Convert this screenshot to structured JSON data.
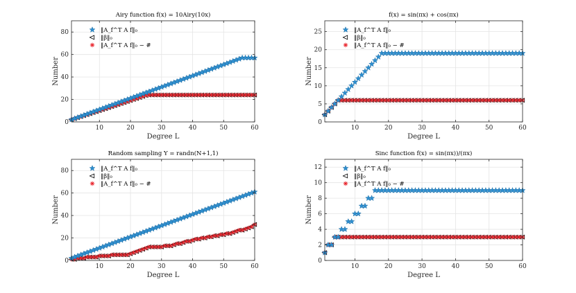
{
  "colors": {
    "star": "#2e8fd0",
    "triangle": "#000000",
    "asterisk": "#e8222a",
    "grid": "#e4e4e4",
    "axis": "#262626"
  },
  "chart_data": [
    {
      "type": "scatter",
      "title": "Airy function f(x) = 10Airy(10x)",
      "xlabel": "Degree L",
      "ylabel": "Number",
      "xlim": [
        1,
        60
      ],
      "ylim": [
        0,
        90
      ],
      "xticks": [
        "10",
        "20",
        "30",
        "40",
        "50",
        "60"
      ],
      "yticks": [
        "0",
        "20",
        "40",
        "60",
        "80"
      ],
      "legend": [
        "‖A_f^T A f‖₀",
        "‖β‖₀",
        "‖A_f^T A f‖₀ − #"
      ],
      "series": [
        {
          "name": "‖A_f^T A f‖₀",
          "marker": "star",
          "description": "linear growth from 2 at L=1 to 57 at L=56, then flat at 57",
          "values": [
            2,
            3,
            4,
            5,
            6,
            7,
            8,
            9,
            10,
            11,
            12,
            13,
            14,
            15,
            16,
            17,
            18,
            19,
            20,
            21,
            22,
            23,
            24,
            25,
            26,
            27,
            28,
            29,
            30,
            31,
            32,
            33,
            34,
            35,
            36,
            37,
            38,
            39,
            40,
            41,
            42,
            43,
            44,
            45,
            46,
            47,
            48,
            49,
            50,
            51,
            52,
            53,
            54,
            55,
            56,
            57,
            57,
            57,
            57,
            57
          ]
        },
        {
          "name": "‖β‖₀",
          "marker": "triangle",
          "description": "grows ~0.9 per degree to 24 near L=26, then flat at 24",
          "values": [
            2,
            2.9,
            3.8,
            4.7,
            5.6,
            6.5,
            7.4,
            8.3,
            9.2,
            10.1,
            11,
            11.9,
            12.8,
            13.7,
            14.6,
            15.5,
            16.4,
            17.3,
            18.2,
            19.1,
            20,
            20.9,
            21.8,
            22.7,
            23.6,
            24,
            24,
            24,
            24,
            24,
            24,
            24,
            24,
            24,
            24,
            24,
            24,
            24,
            24,
            24,
            24,
            24,
            24,
            24,
            24,
            24,
            24,
            24,
            24,
            24,
            24,
            24,
            24,
            24,
            24,
            24,
            24,
            24,
            24,
            24
          ]
        },
        {
          "name": "‖A_f^T A f‖₀ − #",
          "marker": "asterisk",
          "description": "coincides with ‖β‖₀",
          "values": [
            2,
            2.9,
            3.8,
            4.7,
            5.6,
            6.5,
            7.4,
            8.3,
            9.2,
            10.1,
            11,
            11.9,
            12.8,
            13.7,
            14.6,
            15.5,
            16.4,
            17.3,
            18.2,
            19.1,
            20,
            20.9,
            21.8,
            22.7,
            23.6,
            24,
            24,
            24,
            24,
            24,
            24,
            24,
            24,
            24,
            24,
            24,
            24,
            24,
            24,
            24,
            24,
            24,
            24,
            24,
            24,
            24,
            24,
            24,
            24,
            24,
            24,
            24,
            24,
            24,
            24,
            24,
            24,
            24,
            24,
            24
          ]
        }
      ]
    },
    {
      "type": "scatter",
      "title": "f(x) = sin(πx) + cos(πx)",
      "xlabel": "Degree L",
      "ylabel": "Number",
      "xlim": [
        1,
        60
      ],
      "ylim": [
        0,
        28
      ],
      "xticks": [
        "10",
        "20",
        "30",
        "40",
        "50",
        "60"
      ],
      "yticks": [
        "0",
        "5",
        "10",
        "15",
        "20",
        "25"
      ],
      "legend": [
        "‖A_f^T A f‖₀",
        "‖β‖₀",
        "‖A_f^T A f‖₀ − #"
      ],
      "series": [
        {
          "name": "‖A_f^T A f‖₀",
          "marker": "star",
          "description": "grows by 1 per degree to 19 at L=18, then flat at 19",
          "values": [
            2,
            3,
            4,
            5,
            6,
            7,
            8,
            9,
            10,
            11,
            12,
            13,
            14,
            15,
            16,
            17,
            18,
            19,
            19,
            19,
            19,
            19,
            19,
            19,
            19,
            19,
            19,
            19,
            19,
            19,
            19,
            19,
            19,
            19,
            19,
            19,
            19,
            19,
            19,
            19,
            19,
            19,
            19,
            19,
            19,
            19,
            19,
            19,
            19,
            19,
            19,
            19,
            19,
            19,
            19,
            19,
            19,
            19,
            19,
            19
          ]
        },
        {
          "name": "‖β‖₀",
          "marker": "triangle",
          "description": "grows to 6 at L=5, then flat at 6",
          "values": [
            2,
            3,
            4,
            5,
            6,
            6,
            6,
            6,
            6,
            6,
            6,
            6,
            6,
            6,
            6,
            6,
            6,
            6,
            6,
            6,
            6,
            6,
            6,
            6,
            6,
            6,
            6,
            6,
            6,
            6,
            6,
            6,
            6,
            6,
            6,
            6,
            6,
            6,
            6,
            6,
            6,
            6,
            6,
            6,
            6,
            6,
            6,
            6,
            6,
            6,
            6,
            6,
            6,
            6,
            6,
            6,
            6,
            6,
            6,
            6
          ]
        },
        {
          "name": "‖A_f^T A f‖₀ − #",
          "marker": "asterisk",
          "description": "coincides with ‖β‖₀",
          "values": [
            2,
            3,
            4,
            5,
            6,
            6,
            6,
            6,
            6,
            6,
            6,
            6,
            6,
            6,
            6,
            6,
            6,
            6,
            6,
            6,
            6,
            6,
            6,
            6,
            6,
            6,
            6,
            6,
            6,
            6,
            6,
            6,
            6,
            6,
            6,
            6,
            6,
            6,
            6,
            6,
            6,
            6,
            6,
            6,
            6,
            6,
            6,
            6,
            6,
            6,
            6,
            6,
            6,
            6,
            6,
            6,
            6,
            6,
            6,
            6
          ]
        }
      ]
    },
    {
      "type": "scatter",
      "title": "Random sampling Y = randn(N+1,1)",
      "xlabel": "Degree L",
      "ylabel": "Number",
      "xlim": [
        1,
        60
      ],
      "ylim": [
        0,
        90
      ],
      "xticks": [
        "10",
        "20",
        "30",
        "40",
        "50",
        "60"
      ],
      "yticks": [
        "0",
        "20",
        "40",
        "60",
        "80"
      ],
      "legend": [
        "‖A_f^T A f‖₀",
        "‖β‖₀",
        "‖A_f^T A f‖₀ − #"
      ],
      "series": [
        {
          "name": "‖A_f^T A f‖₀",
          "marker": "star",
          "description": "linear growth from 2 to 61",
          "values": [
            2,
            3,
            4,
            5,
            6,
            7,
            8,
            9,
            10,
            11,
            12,
            13,
            14,
            15,
            16,
            17,
            18,
            19,
            20,
            21,
            22,
            23,
            24,
            25,
            26,
            27,
            28,
            29,
            30,
            31,
            32,
            33,
            34,
            35,
            36,
            37,
            38,
            39,
            40,
            41,
            42,
            43,
            44,
            45,
            46,
            47,
            48,
            49,
            50,
            51,
            52,
            53,
            54,
            55,
            56,
            57,
            58,
            59,
            60,
            61
          ]
        },
        {
          "name": "‖β‖₀",
          "marker": "triangle",
          "description": "irregular staircase growth to about 32",
          "values": [
            1,
            1,
            2,
            2,
            2,
            3,
            3,
            3,
            3,
            4,
            4,
            4,
            4,
            5,
            5,
            5,
            5,
            5,
            5,
            6,
            7,
            8,
            9,
            10,
            11,
            12,
            12,
            12,
            12,
            12,
            13,
            13,
            13,
            14,
            15,
            15,
            16,
            17,
            17,
            18,
            19,
            19,
            20,
            20,
            21,
            21,
            22,
            22,
            23,
            23,
            24,
            24,
            25,
            26,
            27,
            27,
            28,
            29,
            30,
            32
          ]
        },
        {
          "name": "‖A_f^T A f‖₀ − #",
          "marker": "asterisk",
          "description": "coincides with ‖β‖₀",
          "values": [
            1,
            1,
            2,
            2,
            2,
            3,
            3,
            3,
            3,
            4,
            4,
            4,
            4,
            5,
            5,
            5,
            5,
            5,
            5,
            6,
            7,
            8,
            9,
            10,
            11,
            12,
            12,
            12,
            12,
            12,
            13,
            13,
            13,
            14,
            15,
            15,
            16,
            17,
            17,
            18,
            19,
            19,
            20,
            20,
            21,
            21,
            22,
            22,
            23,
            23,
            24,
            24,
            25,
            26,
            27,
            27,
            28,
            29,
            30,
            32
          ]
        }
      ]
    },
    {
      "type": "scatter",
      "title": "Sinc function f(x) = sin(πx))/(πx)",
      "xlabel": "Degree L",
      "ylabel": "Number",
      "xlim": [
        1,
        60
      ],
      "ylim": [
        0,
        13
      ],
      "xticks": [
        "10",
        "20",
        "30",
        "40",
        "50",
        "60"
      ],
      "yticks": [
        "0",
        "2",
        "4",
        "6",
        "8",
        "10",
        "12"
      ],
      "legend": [
        "‖A_f^T A f‖₀",
        "‖β‖₀",
        "‖A_f^T A f‖₀ − #"
      ],
      "series": [
        {
          "name": "‖A_f^T A f‖₀",
          "marker": "star",
          "description": "staircase up to 9 at L=16, then flat at 9",
          "values": [
            1,
            2,
            2,
            3,
            3,
            4,
            4,
            5,
            5,
            6,
            6,
            7,
            7,
            8,
            8,
            9,
            9,
            9,
            9,
            9,
            9,
            9,
            9,
            9,
            9,
            9,
            9,
            9,
            9,
            9,
            9,
            9,
            9,
            9,
            9,
            9,
            9,
            9,
            9,
            9,
            9,
            9,
            9,
            9,
            9,
            9,
            9,
            9,
            9,
            9,
            9,
            9,
            9,
            9,
            9,
            9,
            9,
            9,
            9,
            9
          ]
        },
        {
          "name": "‖β‖₀",
          "marker": "triangle",
          "description": "1, 2, 2, then flat at 3",
          "values": [
            1,
            2,
            2,
            3,
            3,
            3,
            3,
            3,
            3,
            3,
            3,
            3,
            3,
            3,
            3,
            3,
            3,
            3,
            3,
            3,
            3,
            3,
            3,
            3,
            3,
            3,
            3,
            3,
            3,
            3,
            3,
            3,
            3,
            3,
            3,
            3,
            3,
            3,
            3,
            3,
            3,
            3,
            3,
            3,
            3,
            3,
            3,
            3,
            3,
            3,
            3,
            3,
            3,
            3,
            3,
            3,
            3,
            3,
            3,
            3
          ]
        },
        {
          "name": "‖A_f^T A f‖₀ − #",
          "marker": "asterisk",
          "description": "coincides with ‖β‖₀",
          "values": [
            1,
            2,
            2,
            3,
            3,
            3,
            3,
            3,
            3,
            3,
            3,
            3,
            3,
            3,
            3,
            3,
            3,
            3,
            3,
            3,
            3,
            3,
            3,
            3,
            3,
            3,
            3,
            3,
            3,
            3,
            3,
            3,
            3,
            3,
            3,
            3,
            3,
            3,
            3,
            3,
            3,
            3,
            3,
            3,
            3,
            3,
            3,
            3,
            3,
            3,
            3,
            3,
            3,
            3,
            3,
            3,
            3,
            3,
            3,
            3
          ]
        }
      ]
    }
  ]
}
